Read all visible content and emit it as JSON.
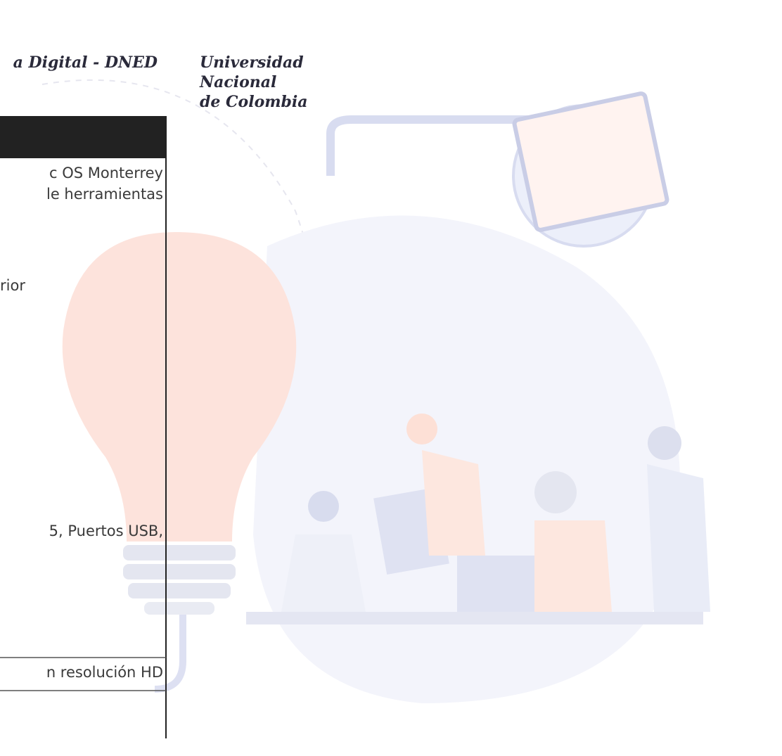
{
  "header": {
    "unit": "a Digital - DNED",
    "university": [
      "Universidad",
      "Nacional",
      "de Colombia"
    ]
  },
  "table": {
    "rows": [
      [
        "c OS Monterrey",
        "le herramientas"
      ],
      [
        "rior"
      ],
      [
        "5, Puertos USB,"
      ],
      [
        "n resolución HD"
      ]
    ]
  }
}
